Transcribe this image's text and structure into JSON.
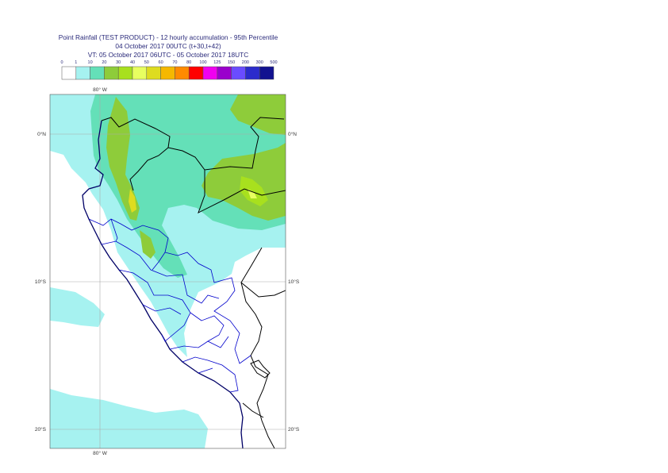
{
  "title": {
    "line1": "Point Rainfall (TEST PRODUCT) - 12 hourly accumulation - 95th Percentile",
    "line2": "04 October 2017 00UTC (t+30,t+42)",
    "line3": "VT: 05 October 2017 06UTC - 05 October 2017 18UTC"
  },
  "legend": {
    "thresholds": [
      "0",
      "1",
      "10",
      "20",
      "30",
      "40",
      "50",
      "60",
      "70",
      "80",
      "100",
      "125",
      "150",
      "200",
      "300",
      "500"
    ],
    "colors": [
      "#ffffff",
      "#a6f2f0",
      "#64e0b8",
      "#8ecc3a",
      "#a8e01e",
      "#e8ff60",
      "#dedc20",
      "#f5b800",
      "#ff8a00",
      "#ff0000",
      "#f000f0",
      "#9a00cc",
      "#6a4cff",
      "#2c2ccc",
      "#121290"
    ]
  },
  "axes": {
    "lon_top": "80° W",
    "lon_bottom": "80° W",
    "lat_labels": [
      "0°N",
      "10°S",
      "20°S"
    ]
  }
}
